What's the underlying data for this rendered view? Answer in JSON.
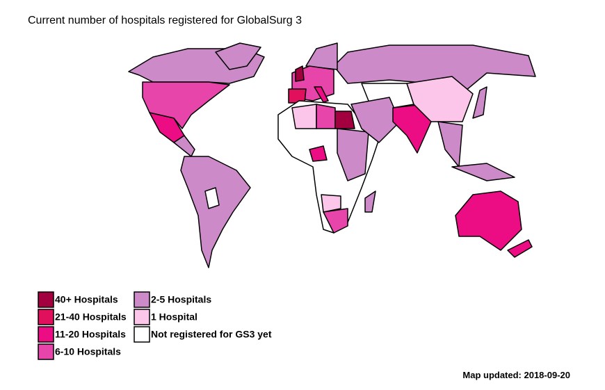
{
  "title": "Current number of hospitals registered for GlobalSurg 3",
  "legend": [
    {
      "label": "40+ Hospitals",
      "color": "#a3003f"
    },
    {
      "label": "21-40 Hospitals",
      "color": "#e0105c"
    },
    {
      "label": "11-20 Hospitals",
      "color": "#ec0c84"
    },
    {
      "label": "6-10 Hospitals",
      "color": "#e845ab"
    },
    {
      "label": "2-5 Hospitals",
      "color": "#cc8ac8"
    },
    {
      "label": "1 Hospital",
      "color": "#fbc6ea"
    },
    {
      "label": "Not registered for GS3 yet",
      "color": "#ffffff"
    }
  ],
  "footer": "Map updated: 2018-09-20"
}
